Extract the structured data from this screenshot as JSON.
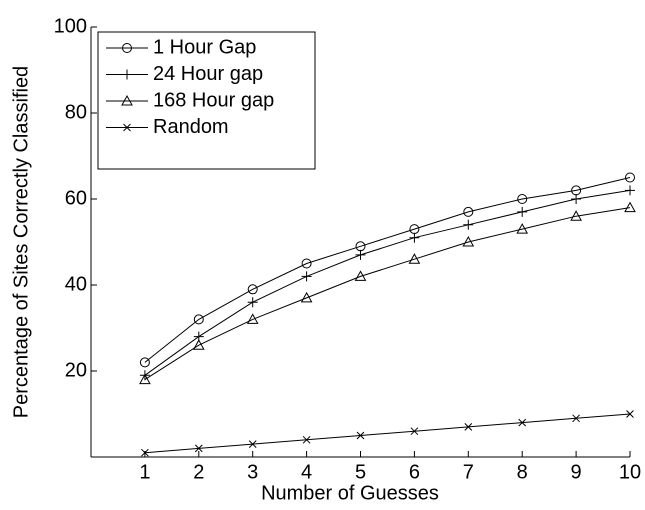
{
  "chart_data": {
    "type": "line",
    "xlabel": "Number of Guesses",
    "ylabel": "Percentage of Sites Correctly Classified",
    "x": [
      1,
      2,
      3,
      4,
      5,
      6,
      7,
      8,
      9,
      10
    ],
    "series": [
      {
        "name": "1 Hour Gap",
        "color": "#000000",
        "marker": "circle",
        "values": [
          22,
          32,
          39,
          45,
          49,
          53,
          57,
          60,
          62,
          65
        ]
      },
      {
        "name": "24 Hour gap",
        "color": "#000000",
        "marker": "plus",
        "values": [
          19,
          28,
          36,
          42,
          47,
          51,
          54,
          57,
          60,
          62
        ]
      },
      {
        "name": "168 Hour gap",
        "color": "#000000",
        "marker": "triangle",
        "values": [
          18,
          26,
          32,
          37,
          42,
          46,
          50,
          53,
          56,
          58
        ]
      },
      {
        "name": "Random",
        "color": "#000000",
        "marker": "x",
        "values": [
          1,
          2,
          3,
          4,
          5,
          6,
          7,
          8,
          9,
          10
        ]
      }
    ],
    "xlim": [
      0,
      10
    ],
    "ylim": [
      0,
      100
    ],
    "xticks": [
      1,
      2,
      3,
      4,
      5,
      6,
      7,
      8,
      9,
      10
    ],
    "yticks": [
      20,
      40,
      60,
      80,
      100
    ],
    "legend": "upper-left"
  }
}
